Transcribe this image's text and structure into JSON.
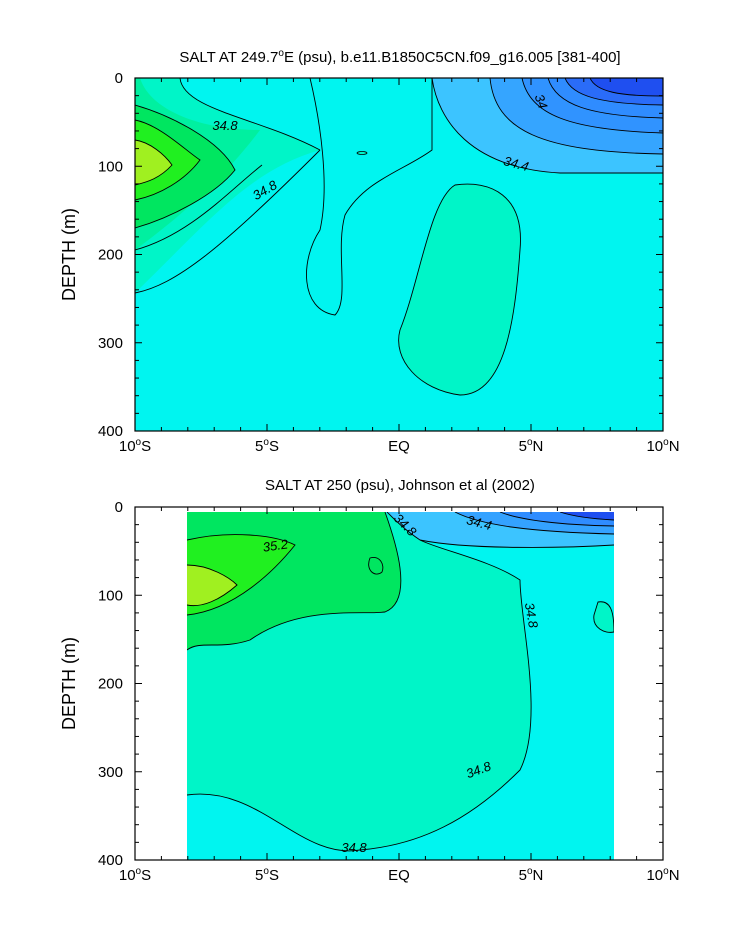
{
  "colors": {
    "blue_dark": "#1f4ff0",
    "blue_mid": "#2f8cff",
    "blue_light": "#3cc4ff",
    "cyan": "#00f5f0",
    "aqua_green": "#00f5c8",
    "green_light": "#00f0a0",
    "green": "#00e660",
    "green_bright": "#20f020",
    "yellow_green": "#a0f020"
  },
  "chart_data": [
    {
      "type": "contour",
      "title": "SALT AT 249.7°E (psu), b.e11.B1850C5CN.f09_g16.005 [381-400]",
      "title_parts": {
        "prefix": "SALT AT 249.7",
        "sup": "o",
        "suffix": "E (psu), b.e11.B1850C5CN.f09_g16.005 [381-400]"
      },
      "xlabel": "",
      "ylabel": "DEPTH (m)",
      "x_range": [
        -10,
        10
      ],
      "y_range": [
        0,
        400
      ],
      "x_ticks": [
        -10,
        -5,
        0,
        5,
        10
      ],
      "x_tick_labels": [
        {
          "num": "10",
          "sup": "o",
          "hem": "S"
        },
        {
          "num": "5",
          "sup": "o",
          "hem": "S"
        },
        {
          "num": "EQ",
          "sup": "",
          "hem": ""
        },
        {
          "num": "5",
          "sup": "o",
          "hem": "N"
        },
        {
          "num": "10",
          "sup": "o",
          "hem": "N"
        }
      ],
      "y_ticks": [
        0,
        100,
        200,
        300,
        400
      ],
      "y_tick_labels": [
        "0",
        "100",
        "200",
        "300",
        "400"
      ],
      "contour_labels": [
        "34.8",
        "34.8",
        "34",
        "34.4"
      ]
    },
    {
      "type": "contour",
      "title": "SALT AT 250 (psu), Johnson et al (2002)",
      "xlabel": "",
      "ylabel": "DEPTH (m)",
      "x_range": [
        -10,
        10
      ],
      "y_range": [
        0,
        400
      ],
      "data_x_extent": [
        -8,
        8.2
      ],
      "x_ticks": [
        -10,
        -5,
        0,
        5,
        10
      ],
      "x_tick_labels": [
        {
          "num": "10",
          "sup": "o",
          "hem": "S"
        },
        {
          "num": "5",
          "sup": "o",
          "hem": "S"
        },
        {
          "num": "EQ",
          "sup": "",
          "hem": ""
        },
        {
          "num": "5",
          "sup": "o",
          "hem": "N"
        },
        {
          "num": "10",
          "sup": "o",
          "hem": "N"
        }
      ],
      "y_ticks": [
        0,
        100,
        200,
        300,
        400
      ],
      "y_tick_labels": [
        "0",
        "100",
        "200",
        "300",
        "400"
      ],
      "contour_labels": [
        "35.2",
        "34.8",
        "34.4",
        "34.8",
        "34.8",
        "34.8"
      ]
    }
  ]
}
